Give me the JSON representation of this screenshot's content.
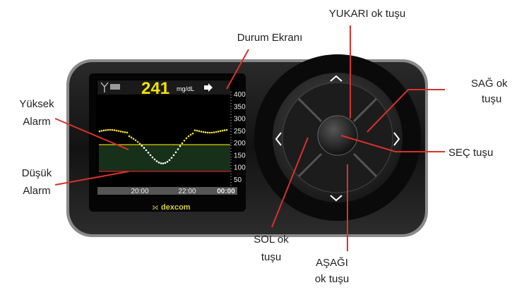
{
  "callouts": {
    "status_screen": "Durum Ekranı",
    "up_key": "YUKARI ok tuşu",
    "right_key": [
      "SAĞ ok",
      "tuşu"
    ],
    "select_key": "SEÇ tuşu",
    "high_alarm": [
      "Yüksek",
      "Alarm"
    ],
    "low_alarm": [
      "Düşük",
      "Alarm"
    ],
    "left_key": [
      "SOL ok",
      "tuşu"
    ],
    "down_key": [
      "AŞAĞI",
      "ok tuşu"
    ]
  },
  "screen": {
    "reading": "241",
    "unit": "mg/dL",
    "scale": [
      "400",
      "350",
      "300",
      "250",
      "200",
      "150",
      "100",
      "50"
    ],
    "times": [
      "20:00",
      "22:00",
      "00:00"
    ],
    "brand": "dexcom"
  }
}
